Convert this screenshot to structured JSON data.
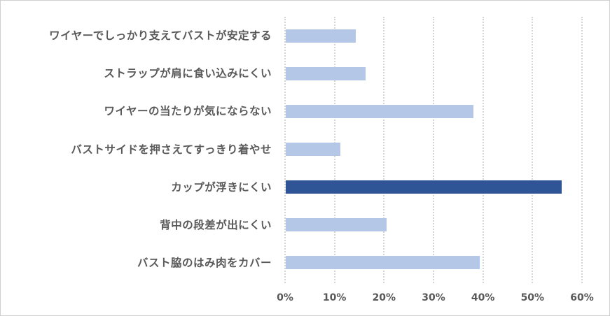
{
  "chart_data": {
    "type": "bar",
    "orientation": "horizontal",
    "title": "",
    "xlabel": "",
    "ylabel": "",
    "categories": [
      "ワイヤーでしっかり支えてバストが安定する",
      "ストラップが肩に食い込みにくい",
      "ワイヤーの当たりが気にならない",
      "バストサイドを押さえてすっきり着やせ",
      "カップが浮きにくい",
      "背中の段差が出にくい",
      "バスト脇のはみ肉をカバー"
    ],
    "values": [
      14.2,
      16.1,
      37.9,
      11.0,
      55.8,
      20.4,
      39.2
    ],
    "unit": "%",
    "xlim": [
      0,
      60
    ],
    "x_ticks": [
      "0%",
      "10%",
      "20%",
      "30%",
      "40%",
      "50%",
      "60%"
    ],
    "grid": "vertical",
    "legend": null,
    "highlight_index": 4,
    "colors": {
      "default": "#b4c7e7",
      "highlight": "#2f5597",
      "grid": "#d4d4d4",
      "text": "#595959"
    }
  }
}
